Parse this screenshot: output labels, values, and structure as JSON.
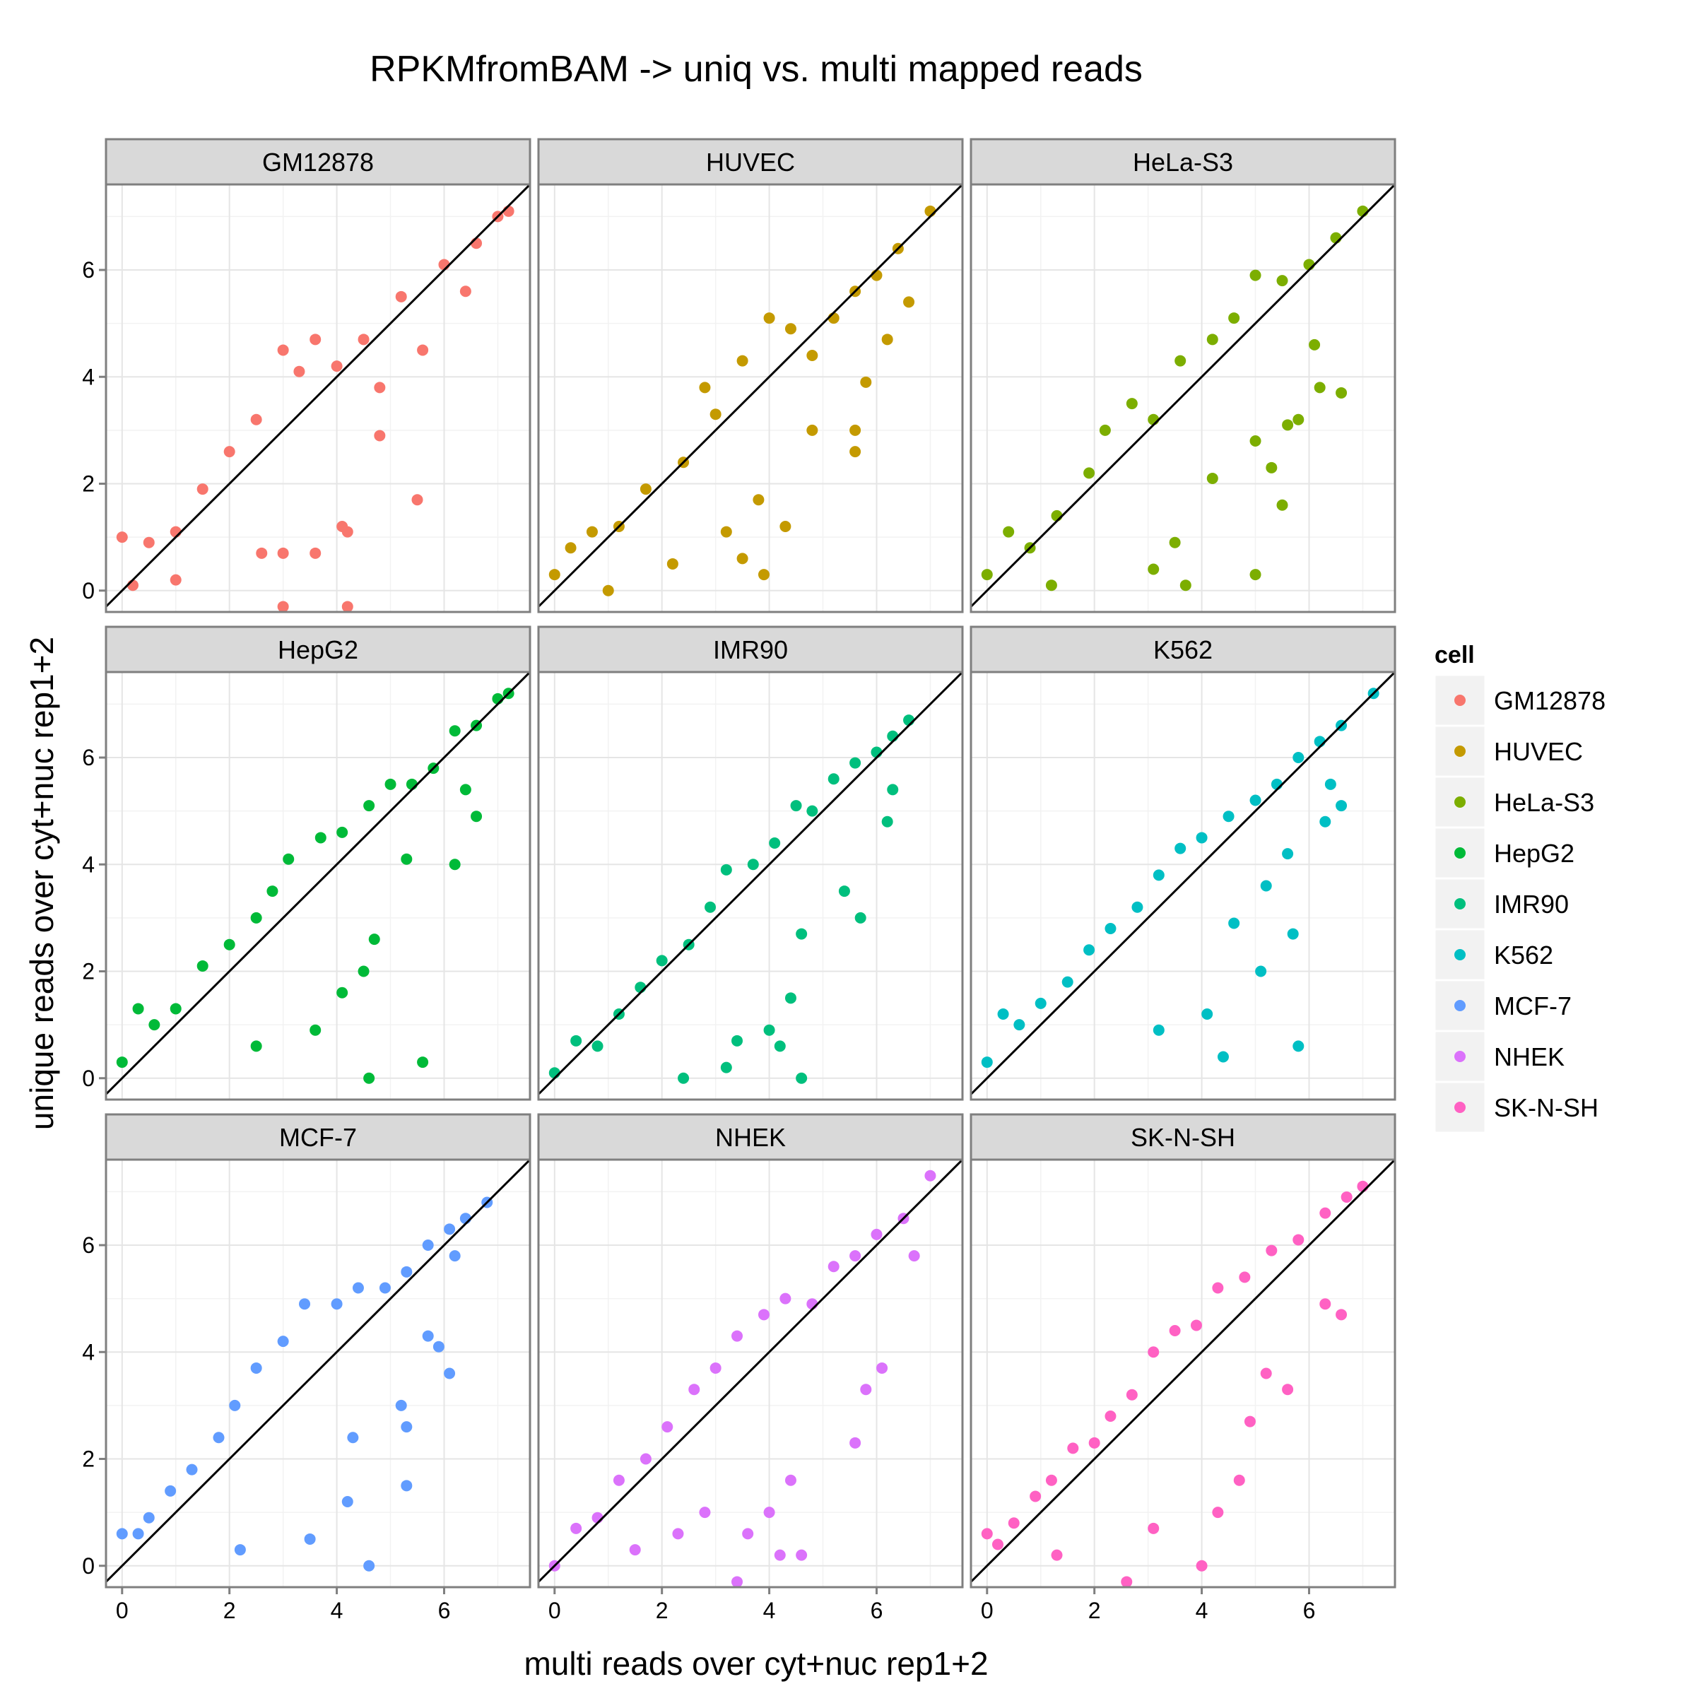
{
  "chart_data": {
    "type": "scatter",
    "title": "RPKMfromBAM -> uniq vs. multi mapped reads",
    "xlabel": "multi reads over cyt+nuc rep1+2",
    "ylabel": "unique reads over cyt+nuc rep1+2",
    "xlim": [
      -0.3,
      7.6
    ],
    "ylim": [
      -0.4,
      7.6
    ],
    "xticks": [
      0,
      2,
      4,
      6
    ],
    "yticks": [
      0,
      2,
      4,
      6
    ],
    "grid": true,
    "reference_line": {
      "slope": 1,
      "intercept": 0
    },
    "legend": {
      "title": "cell",
      "position": "right"
    },
    "panels": [
      {
        "name": "GM12878",
        "color": "#F8766D",
        "points": [
          [
            0,
            1.0
          ],
          [
            0.2,
            0.1
          ],
          [
            0.5,
            0.9
          ],
          [
            1.0,
            1.1
          ],
          [
            1.5,
            1.9
          ],
          [
            2.0,
            2.6
          ],
          [
            2.5,
            3.2
          ],
          [
            3.0,
            4.5
          ],
          [
            3.3,
            4.1
          ],
          [
            3.6,
            4.7
          ],
          [
            4.0,
            4.2
          ],
          [
            4.5,
            4.7
          ],
          [
            4.8,
            3.8
          ],
          [
            5.2,
            5.5
          ],
          [
            5.6,
            4.5
          ],
          [
            6.0,
            6.1
          ],
          [
            6.4,
            5.6
          ],
          [
            6.6,
            6.5
          ],
          [
            7.0,
            7.0
          ],
          [
            7.2,
            7.1
          ],
          [
            3.0,
            0.7
          ],
          [
            3.6,
            0.7
          ],
          [
            4.1,
            1.2
          ],
          [
            5.5,
            1.7
          ],
          [
            4.2,
            1.1
          ],
          [
            4.8,
            2.9
          ],
          [
            2.6,
            0.7
          ],
          [
            1.0,
            0.2
          ],
          [
            3.0,
            -0.3
          ],
          [
            4.2,
            -0.3
          ]
        ]
      },
      {
        "name": "HUVEC",
        "color": "#C49A00",
        "points": [
          [
            0,
            0.3
          ],
          [
            0.3,
            0.8
          ],
          [
            0.7,
            1.1
          ],
          [
            1.2,
            1.2
          ],
          [
            1.7,
            1.9
          ],
          [
            2.4,
            2.4
          ],
          [
            2.8,
            3.8
          ],
          [
            3.0,
            3.3
          ],
          [
            3.5,
            4.3
          ],
          [
            4.0,
            5.1
          ],
          [
            4.4,
            4.9
          ],
          [
            4.8,
            4.4
          ],
          [
            5.2,
            5.1
          ],
          [
            5.6,
            5.6
          ],
          [
            6.0,
            5.9
          ],
          [
            6.4,
            6.4
          ],
          [
            6.6,
            5.4
          ],
          [
            7.0,
            7.1
          ],
          [
            6.2,
            4.7
          ],
          [
            5.8,
            3.9
          ],
          [
            5.6,
            3.0
          ],
          [
            5.6,
            2.6
          ],
          [
            4.8,
            3.0
          ],
          [
            3.8,
            1.7
          ],
          [
            3.2,
            1.1
          ],
          [
            4.3,
            1.2
          ],
          [
            3.5,
            0.6
          ],
          [
            2.2,
            0.5
          ],
          [
            3.9,
            0.3
          ],
          [
            1.0,
            0.0
          ]
        ]
      },
      {
        "name": "HeLa-S3",
        "color": "#7CAE00",
        "points": [
          [
            0,
            0.3
          ],
          [
            0.4,
            1.1
          ],
          [
            0.8,
            0.8
          ],
          [
            1.3,
            1.4
          ],
          [
            1.9,
            2.2
          ],
          [
            2.2,
            3.0
          ],
          [
            2.7,
            3.5
          ],
          [
            3.1,
            3.2
          ],
          [
            3.6,
            4.3
          ],
          [
            4.2,
            4.7
          ],
          [
            4.6,
            5.1
          ],
          [
            5.0,
            5.9
          ],
          [
            5.5,
            5.8
          ],
          [
            6.0,
            6.1
          ],
          [
            6.5,
            6.6
          ],
          [
            7.0,
            7.1
          ],
          [
            6.1,
            4.6
          ],
          [
            6.2,
            3.8
          ],
          [
            6.6,
            3.7
          ],
          [
            5.8,
            3.2
          ],
          [
            5.6,
            3.1
          ],
          [
            5.3,
            2.3
          ],
          [
            5.5,
            1.6
          ],
          [
            5.0,
            2.8
          ],
          [
            4.2,
            2.1
          ],
          [
            3.5,
            0.9
          ],
          [
            3.1,
            0.4
          ],
          [
            5.0,
            0.3
          ],
          [
            3.7,
            0.1
          ],
          [
            1.2,
            0.1
          ]
        ]
      },
      {
        "name": "HepG2",
        "color": "#00BA38",
        "points": [
          [
            0,
            0.3
          ],
          [
            0.3,
            1.3
          ],
          [
            0.6,
            1.0
          ],
          [
            1.0,
            1.3
          ],
          [
            1.5,
            2.1
          ],
          [
            2.0,
            2.5
          ],
          [
            2.5,
            3.0
          ],
          [
            2.8,
            3.5
          ],
          [
            3.1,
            4.1
          ],
          [
            3.7,
            4.5
          ],
          [
            4.1,
            4.6
          ],
          [
            4.6,
            5.1
          ],
          [
            5.0,
            5.5
          ],
          [
            5.4,
            5.5
          ],
          [
            5.8,
            5.8
          ],
          [
            6.2,
            6.5
          ],
          [
            6.6,
            6.6
          ],
          [
            7.0,
            7.1
          ],
          [
            7.2,
            7.2
          ],
          [
            6.4,
            5.4
          ],
          [
            6.6,
            4.9
          ],
          [
            6.2,
            4.0
          ],
          [
            5.3,
            4.1
          ],
          [
            4.7,
            2.6
          ],
          [
            4.5,
            2.0
          ],
          [
            4.1,
            1.6
          ],
          [
            5.6,
            0.3
          ],
          [
            3.6,
            0.9
          ],
          [
            2.5,
            0.6
          ],
          [
            4.6,
            0.0
          ]
        ]
      },
      {
        "name": "IMR90",
        "color": "#00BF7D",
        "points": [
          [
            0,
            0.1
          ],
          [
            0.4,
            0.7
          ],
          [
            0.8,
            0.6
          ],
          [
            1.2,
            1.2
          ],
          [
            1.6,
            1.7
          ],
          [
            2.0,
            2.2
          ],
          [
            2.5,
            2.5
          ],
          [
            2.9,
            3.2
          ],
          [
            3.2,
            3.9
          ],
          [
            3.7,
            4.0
          ],
          [
            4.1,
            4.4
          ],
          [
            4.5,
            5.1
          ],
          [
            4.8,
            5.0
          ],
          [
            5.2,
            5.6
          ],
          [
            5.6,
            5.9
          ],
          [
            6.0,
            6.1
          ],
          [
            6.3,
            6.4
          ],
          [
            6.6,
            6.7
          ],
          [
            6.3,
            5.4
          ],
          [
            6.2,
            4.8
          ],
          [
            5.4,
            3.5
          ],
          [
            5.7,
            3.0
          ],
          [
            4.6,
            2.7
          ],
          [
            4.4,
            1.5
          ],
          [
            4.0,
            0.9
          ],
          [
            3.4,
            0.7
          ],
          [
            4.2,
            0.6
          ],
          [
            2.4,
            0.0
          ],
          [
            3.2,
            0.2
          ],
          [
            4.6,
            0.0
          ]
        ]
      },
      {
        "name": "K562",
        "color": "#00BFC4",
        "points": [
          [
            0,
            0.3
          ],
          [
            0.3,
            1.2
          ],
          [
            0.6,
            1.0
          ],
          [
            1.0,
            1.4
          ],
          [
            1.5,
            1.8
          ],
          [
            1.9,
            2.4
          ],
          [
            2.3,
            2.8
          ],
          [
            2.8,
            3.2
          ],
          [
            3.2,
            3.8
          ],
          [
            3.6,
            4.3
          ],
          [
            4.0,
            4.5
          ],
          [
            4.5,
            4.9
          ],
          [
            5.0,
            5.2
          ],
          [
            5.4,
            5.5
          ],
          [
            5.8,
            6.0
          ],
          [
            6.2,
            6.3
          ],
          [
            6.6,
            6.6
          ],
          [
            7.2,
            7.2
          ],
          [
            6.4,
            5.5
          ],
          [
            6.3,
            4.8
          ],
          [
            6.6,
            5.1
          ],
          [
            5.6,
            4.2
          ],
          [
            5.2,
            3.6
          ],
          [
            4.6,
            2.9
          ],
          [
            5.7,
            2.7
          ],
          [
            5.1,
            2.0
          ],
          [
            4.1,
            1.2
          ],
          [
            5.8,
            0.6
          ],
          [
            4.4,
            0.4
          ],
          [
            3.2,
            0.9
          ]
        ]
      },
      {
        "name": "MCF-7",
        "color": "#619CFF",
        "points": [
          [
            0,
            0.6
          ],
          [
            0.3,
            0.6
          ],
          [
            0.5,
            0.9
          ],
          [
            0.9,
            1.4
          ],
          [
            1.3,
            1.8
          ],
          [
            1.8,
            2.4
          ],
          [
            2.1,
            3.0
          ],
          [
            2.5,
            3.7
          ],
          [
            3.0,
            4.2
          ],
          [
            3.4,
            4.9
          ],
          [
            4.0,
            4.9
          ],
          [
            4.4,
            5.2
          ],
          [
            4.9,
            5.2
          ],
          [
            5.3,
            5.5
          ],
          [
            5.7,
            6.0
          ],
          [
            6.1,
            6.3
          ],
          [
            6.4,
            6.5
          ],
          [
            6.8,
            6.8
          ],
          [
            6.2,
            5.8
          ],
          [
            5.9,
            4.1
          ],
          [
            5.7,
            4.3
          ],
          [
            6.1,
            3.6
          ],
          [
            5.2,
            3.0
          ],
          [
            5.3,
            2.6
          ],
          [
            4.3,
            2.4
          ],
          [
            5.3,
            1.5
          ],
          [
            4.2,
            1.2
          ],
          [
            3.5,
            0.5
          ],
          [
            2.2,
            0.3
          ],
          [
            4.6,
            0.0
          ]
        ]
      },
      {
        "name": "NHEK",
        "color": "#DB72FB",
        "points": [
          [
            0,
            0.0
          ],
          [
            0.4,
            0.7
          ],
          [
            0.8,
            0.9
          ],
          [
            1.2,
            1.6
          ],
          [
            1.7,
            2.0
          ],
          [
            2.1,
            2.6
          ],
          [
            2.6,
            3.3
          ],
          [
            3.0,
            3.7
          ],
          [
            3.4,
            4.3
          ],
          [
            3.9,
            4.7
          ],
          [
            4.3,
            5.0
          ],
          [
            4.8,
            4.9
          ],
          [
            5.2,
            5.6
          ],
          [
            5.6,
            5.8
          ],
          [
            6.0,
            6.2
          ],
          [
            6.5,
            6.5
          ],
          [
            7.0,
            7.3
          ],
          [
            6.7,
            5.8
          ],
          [
            6.1,
            3.7
          ],
          [
            5.8,
            3.3
          ],
          [
            5.6,
            2.3
          ],
          [
            4.4,
            1.6
          ],
          [
            4.0,
            1.0
          ],
          [
            3.6,
            0.6
          ],
          [
            4.2,
            0.2
          ],
          [
            2.3,
            0.6
          ],
          [
            1.5,
            0.3
          ],
          [
            3.4,
            -0.3
          ],
          [
            4.6,
            0.2
          ],
          [
            2.8,
            1.0
          ]
        ]
      },
      {
        "name": "SK-N-SH",
        "color": "#FF61C3",
        "points": [
          [
            0,
            0.6
          ],
          [
            0.2,
            0.4
          ],
          [
            0.5,
            0.8
          ],
          [
            0.9,
            1.3
          ],
          [
            1.2,
            1.6
          ],
          [
            1.6,
            2.2
          ],
          [
            2.0,
            2.3
          ],
          [
            2.3,
            2.8
          ],
          [
            2.7,
            3.2
          ],
          [
            3.1,
            4.0
          ],
          [
            3.5,
            4.4
          ],
          [
            3.9,
            4.5
          ],
          [
            4.3,
            5.2
          ],
          [
            4.8,
            5.4
          ],
          [
            5.3,
            5.9
          ],
          [
            5.8,
            6.1
          ],
          [
            6.3,
            6.6
          ],
          [
            6.7,
            6.9
          ],
          [
            7.0,
            7.1
          ],
          [
            6.6,
            4.7
          ],
          [
            6.3,
            4.9
          ],
          [
            5.2,
            3.6
          ],
          [
            5.6,
            3.3
          ],
          [
            4.9,
            2.7
          ],
          [
            4.7,
            1.6
          ],
          [
            4.3,
            1.0
          ],
          [
            3.1,
            0.7
          ],
          [
            4.0,
            0.0
          ],
          [
            2.6,
            -0.3
          ],
          [
            1.3,
            0.2
          ]
        ]
      }
    ]
  }
}
